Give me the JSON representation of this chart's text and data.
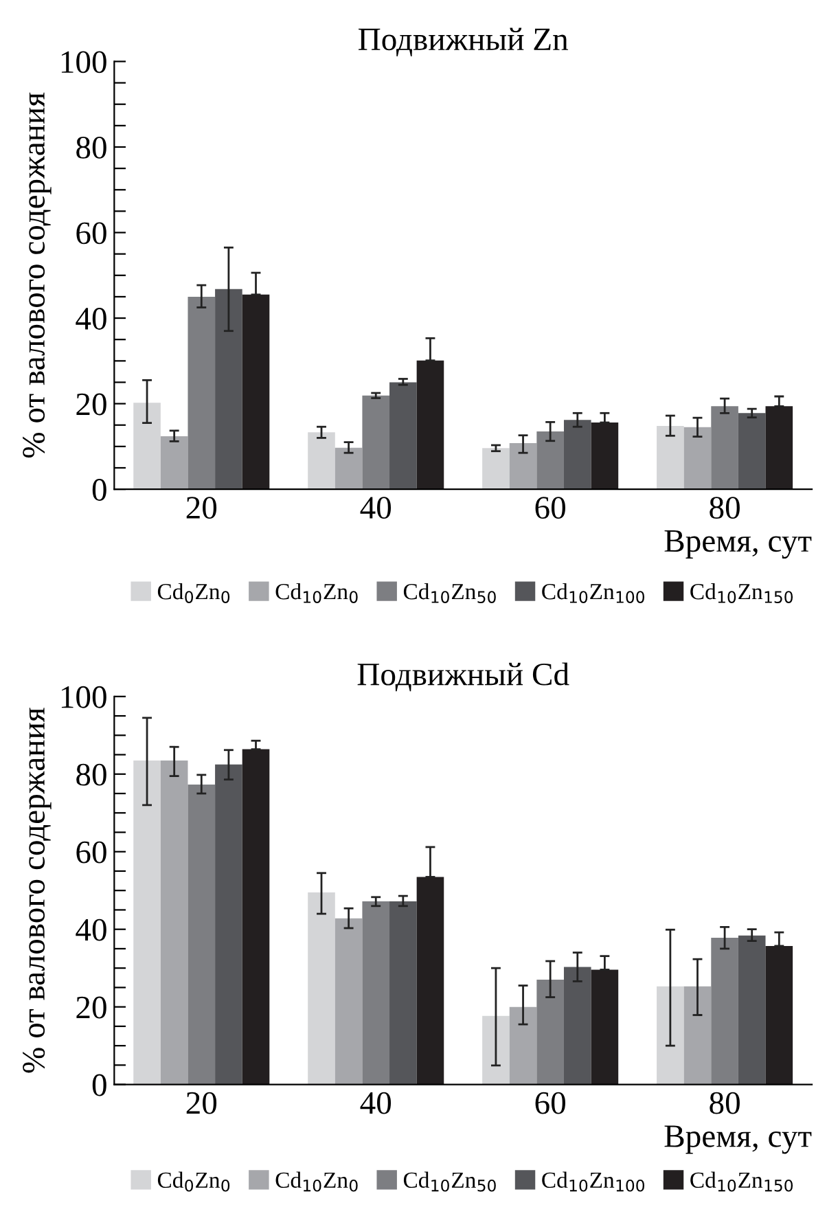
{
  "chart_data": [
    {
      "type": "bar",
      "title": "Подвижный Zn",
      "xlabel": "Время, сут",
      "ylabel": "% от валового содержания",
      "categories": [
        "20",
        "40",
        "60",
        "80"
      ],
      "ylim": [
        0,
        100
      ],
      "yticks": [
        0,
        {
          "value": 5,
          "label": null
        },
        {
          "value": 10,
          "label": null
        },
        {
          "value": 15,
          "label": null
        },
        20,
        {
          "value": 25,
          "label": null
        },
        {
          "value": 30,
          "label": null
        },
        {
          "value": 35,
          "label": null
        },
        40,
        {
          "value": 45,
          "label": null
        },
        {
          "value": 50,
          "label": null
        },
        {
          "value": 55,
          "label": null
        },
        60,
        {
          "value": 65,
          "label": null
        },
        {
          "value": 70,
          "label": null
        },
        {
          "value": 75,
          "label": null
        },
        80,
        {
          "value": 85,
          "label": null
        },
        {
          "value": 90,
          "label": null
        },
        {
          "value": 95,
          "label": null
        },
        100
      ],
      "grid": false,
      "legend": "bottom",
      "series": [
        {
          "name": "Cd$_{0}$Zn$_{0}$",
          "color": "#d4d5d7",
          "values": [
            20.2,
            13.3,
            9.6,
            14.8
          ],
          "errors": [
            [
              15.5,
              25.5
            ],
            [
              12,
              14.6
            ],
            [
              8.9,
              10.3
            ],
            [
              12.5,
              17.2
            ]
          ]
        },
        {
          "name": "Cd$_{10}$Zn$_{0}$",
          "color": "#a6a7ab",
          "values": [
            12.4,
            9.7,
            10.8,
            14.5
          ],
          "errors": [
            [
              11.2,
              13.7
            ],
            [
              8.5,
              11
            ],
            [
              8.5,
              12.6
            ],
            [
              12.3,
              16.7
            ]
          ]
        },
        {
          "name": "Cd$_{10}$Zn$_{50}$",
          "color": "#7d7e82",
          "values": [
            45,
            21.9,
            13.5,
            19.4
          ],
          "errors": [
            [
              42.5,
              47.7
            ],
            [
              21.3,
              22.5
            ],
            [
              11.3,
              15.7
            ],
            [
              17.8,
              21.2
            ]
          ]
        },
        {
          "name": "Cd$_{10}$Zn$_{100}$",
          "color": "#55565a",
          "values": [
            46.8,
            25,
            16.2,
            17.8
          ],
          "errors": [
            [
              37,
              56.5
            ],
            [
              24.4,
              25.8
            ],
            [
              14.6,
              17.8
            ],
            [
              16.8,
              18.8
            ]
          ]
        },
        {
          "name": "Cd$_{10}$Zn$_{150}$",
          "color": "#231f20",
          "values": [
            45.5,
            30.1,
            15.6,
            19.4
          ],
          "errors": [
            [
              45.5,
              50.6
            ],
            [
              30.1,
              35.3
            ],
            [
              15.6,
              17.8
            ],
            [
              19.4,
              21.7
            ]
          ]
        }
      ]
    },
    {
      "type": "bar",
      "title": "Подвижный Cd",
      "xlabel": "Время, сут",
      "ylabel": "% от валового содержания",
      "categories": [
        "20",
        "40",
        "60",
        "80"
      ],
      "ylim": [
        0,
        100
      ],
      "yticks": [
        0,
        {
          "value": 5,
          "label": null
        },
        {
          "value": 10,
          "label": null
        },
        {
          "value": 15,
          "label": null
        },
        20,
        {
          "value": 25,
          "label": null
        },
        {
          "value": 30,
          "label": null
        },
        {
          "value": 35,
          "label": null
        },
        40,
        {
          "value": 45,
          "label": null
        },
        {
          "value": 50,
          "label": null
        },
        {
          "value": 55,
          "label": null
        },
        60,
        {
          "value": 65,
          "label": null
        },
        {
          "value": 70,
          "label": null
        },
        {
          "value": 75,
          "label": null
        },
        80,
        {
          "value": 85,
          "label": null
        },
        {
          "value": 90,
          "label": null
        },
        {
          "value": 95,
          "label": null
        },
        100
      ],
      "grid": false,
      "legend": "bottom",
      "series": [
        {
          "name": "Cd$_{0}$Zn$_{0}$",
          "color": "#d4d5d7",
          "values": [
            83.5,
            49.5,
            17.7,
            25.3
          ],
          "errors": [
            [
              72,
              94.5
            ],
            [
              44,
              54.5
            ],
            [
              4.9,
              30
            ],
            [
              10,
              39.9
            ]
          ]
        },
        {
          "name": "Cd$_{10}$Zn$_{0}$",
          "color": "#a6a7ab",
          "values": [
            83.5,
            42.8,
            20,
            25.3
          ],
          "errors": [
            [
              79.5,
              87
            ],
            [
              40.3,
              45.4
            ],
            [
              15.5,
              25.5
            ],
            [
              17.9,
              32.3
            ]
          ]
        },
        {
          "name": "Cd$_{10}$Zn$_{50}$",
          "color": "#7d7e82",
          "values": [
            77.3,
            47.2,
            27,
            37.8
          ],
          "errors": [
            [
              75,
              79.8
            ],
            [
              46,
              48.3
            ],
            [
              22.5,
              31.8
            ],
            [
              35,
              40.6
            ]
          ]
        },
        {
          "name": "Cd$_{10}$Zn$_{100}$",
          "color": "#55565a",
          "values": [
            82.5,
            47.2,
            30.3,
            38.4
          ],
          "errors": [
            [
              78.6,
              86.2
            ],
            [
              46,
              48.6
            ],
            [
              26.6,
              34
            ],
            [
              37,
              40
            ]
          ]
        },
        {
          "name": "Cd$_{10}$Zn$_{150}$",
          "color": "#231f20",
          "values": [
            86.4,
            53.5,
            29.6,
            35.7
          ],
          "errors": [
            [
              86.4,
              88.6
            ],
            [
              53.5,
              61.2
            ],
            [
              29.6,
              33.1
            ],
            [
              35.7,
              39.2
            ]
          ]
        }
      ]
    }
  ]
}
